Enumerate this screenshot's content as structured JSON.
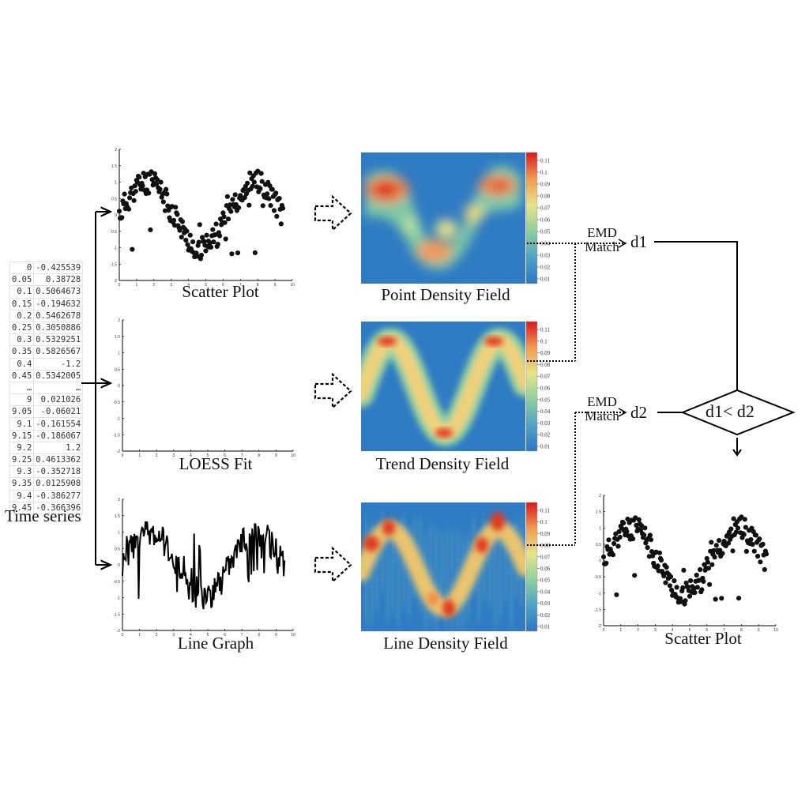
{
  "time_series": {
    "label": "Time series",
    "rows": [
      {
        "t": "0",
        "v": "-0.425539"
      },
      {
        "t": "0.05",
        "v": "0.38728"
      },
      {
        "t": "0.1",
        "v": "0.5064673"
      },
      {
        "t": "0.15",
        "v": "-0.194632"
      },
      {
        "t": "0.2",
        "v": "0.5462678"
      },
      {
        "t": "0.25",
        "v": "0.3050886"
      },
      {
        "t": "0.3",
        "v": "0.5329251"
      },
      {
        "t": "0.35",
        "v": "0.5826567"
      },
      {
        "t": "0.4",
        "v": "-1.2"
      },
      {
        "t": "0.45",
        "v": "0.5342005"
      },
      {
        "t": "…",
        "v": "…"
      },
      {
        "t": "9",
        "v": "0.021026"
      },
      {
        "t": "9.05",
        "v": "-0.06021"
      },
      {
        "t": "9.1",
        "v": "-0.161554"
      },
      {
        "t": "9.15",
        "v": "-0.186067"
      },
      {
        "t": "9.2",
        "v": "1.2"
      },
      {
        "t": "9.25",
        "v": "0.4613362"
      },
      {
        "t": "9.3",
        "v": "-0.352718"
      },
      {
        "t": "9.35",
        "v": "0.0125908"
      },
      {
        "t": "9.4",
        "v": "-0.386277"
      },
      {
        "t": "9.45",
        "v": "-0.366396"
      }
    ]
  },
  "plots": {
    "scatter": {
      "caption": "Scatter Plot",
      "yticks": [
        "2",
        "1.5",
        "1",
        "0.5",
        "0",
        "-0.5",
        "-1",
        "-1.5",
        "-2"
      ],
      "xticks": [
        "0",
        "1",
        "2",
        "3",
        "4",
        "5",
        "6",
        "7",
        "8",
        "9",
        "10"
      ]
    },
    "loess": {
      "caption": "LOESS Fit",
      "yticks": [
        "2",
        "1.5",
        "1",
        "0.5",
        "0",
        "-0.5",
        "-1",
        "-1.5",
        "-2"
      ],
      "xticks": [
        "0",
        "1",
        "2",
        "3",
        "4",
        "5",
        "6",
        "7",
        "8",
        "9",
        "10"
      ]
    },
    "line": {
      "caption": "Line Graph",
      "yticks": [
        "2",
        "1.5",
        "1",
        "0.5",
        "0",
        "-0.5",
        "-1",
        "-1.5",
        "-2"
      ],
      "xticks": [
        "0",
        "1",
        "2",
        "3",
        "4",
        "5",
        "6",
        "7",
        "8",
        "9",
        "10"
      ]
    },
    "result": {
      "caption": "Scatter Plot",
      "yticks": [
        "2",
        "1.5",
        "1",
        "0.5",
        "0",
        "-0.5",
        "-1",
        "-1.5",
        "-2"
      ],
      "xticks": [
        "0",
        "1",
        "2",
        "3",
        "4",
        "5",
        "6",
        "7",
        "8",
        "9",
        "10"
      ]
    }
  },
  "fields": {
    "point": {
      "caption": "Point Density Field"
    },
    "trend": {
      "caption": "Trend Density Field"
    },
    "line": {
      "caption": "Line Density Field"
    },
    "colorbar_ticks": [
      "0.11",
      "0.1",
      "0.09",
      "0.08",
      "0.07",
      "0.06",
      "0.05",
      "0.04",
      "0.03",
      "0.02",
      "0.01"
    ]
  },
  "emd": {
    "label_top": "EMD",
    "label_bottom": "Match",
    "d1": "d1",
    "d2": "d2"
  },
  "decision": {
    "text": "d1< d2"
  },
  "colors": {
    "loess_curve": "#e01010",
    "density_low": "#2e7fc1",
    "density_high": "#d92020",
    "ink": "#000000"
  }
}
